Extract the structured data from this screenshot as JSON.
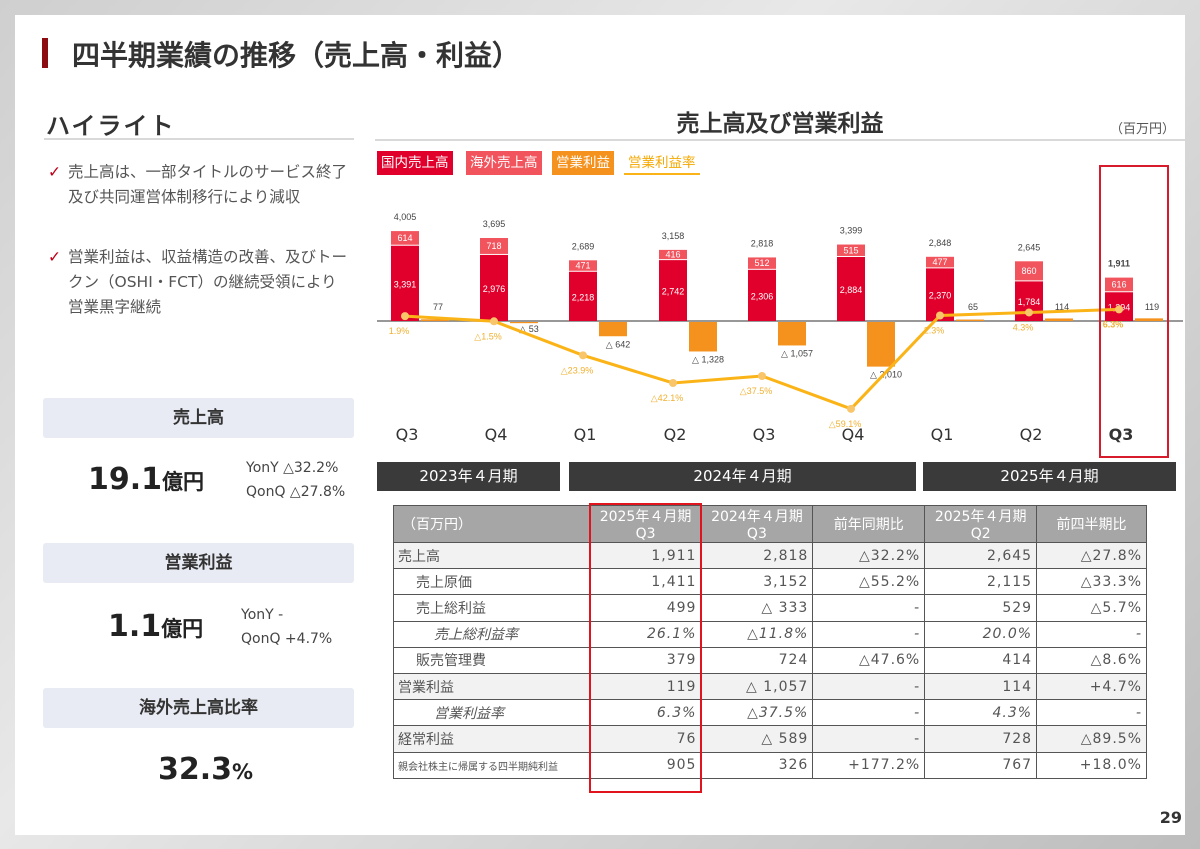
{
  "title": "四半期業績の推移（売上高・利益）",
  "highlight": {
    "title": "ハイライト",
    "bullets": [
      "売上高は、一部タイトルのサービス終了及び共同運営体制移行により減収",
      "営業利益は、収益構造の改善、及びトークン（OSHI・FCT）の継続受領により営業黒字継続"
    ],
    "check_icon": "✓"
  },
  "kpis": [
    {
      "label": "売上高",
      "value": "19.1",
      "unit": "億円",
      "yoy": "YonY △32.2%",
      "qoq": "QonQ △27.8%"
    },
    {
      "label": "営業利益",
      "value": "1.1",
      "unit": "億円",
      "yoy": "YonY -",
      "qoq": "QonQ  +4.7%"
    },
    {
      "label": "海外売上高比率",
      "value": "32.3",
      "unit": "%"
    }
  ],
  "chart_data": {
    "type": "bar",
    "title": "売上高及び営業利益",
    "unit": "（百万円）",
    "categories": [
      "Q3",
      "Q4",
      "Q1",
      "Q2",
      "Q3",
      "Q4",
      "Q1",
      "Q2",
      "Q3"
    ],
    "periods": [
      "2023年４月期",
      "2024年４月期",
      "2025年４月期"
    ],
    "series": [
      {
        "name": "国内売上高",
        "color": "#e0002b",
        "values": [
          3391,
          2976,
          2218,
          2742,
          2306,
          2884,
          2370,
          1784,
          1294
        ],
        "labels": [
          "3,391",
          "2,976",
          "2,218",
          "2,742",
          "2,306",
          "2,884",
          "2,370",
          "1,784",
          "1,294"
        ]
      },
      {
        "name": "海外売上高",
        "color": "#f2545e",
        "values": [
          614,
          718,
          471,
          416,
          512,
          515,
          477,
          860,
          616
        ],
        "labels": [
          "614",
          "718",
          "471",
          "416",
          "512",
          "515",
          "477",
          "860",
          "616"
        ]
      },
      {
        "name": "営業利益",
        "color": "#f5921e",
        "values": [
          77,
          -53,
          -642,
          -1328,
          -1057,
          -2010,
          65,
          114,
          119
        ],
        "labels": [
          "77",
          "△ 53",
          "△ 642",
          "△ 1,328",
          "△ 1,057",
          "△ 2,010",
          "65",
          "114",
          "119"
        ]
      },
      {
        "name": "営業利益率",
        "color": "#fbb417",
        "values": [
          1.9,
          -1.5,
          -23.9,
          -42.1,
          -37.5,
          -59.1,
          2.3,
          4.3,
          6.3
        ],
        "labels": [
          "1.9%",
          "△1.5%",
          "△23.9%",
          "△42.1%",
          "△37.5%",
          "△59.1%",
          "2.3%",
          "4.3%",
          "6.3%"
        ]
      }
    ],
    "totals": [
      "4,005",
      "3,695",
      "2,689",
      "3,158",
      "2,818",
      "3,399",
      "2,848",
      "2,645",
      "1,911"
    ]
  },
  "table": {
    "headers": [
      [
        "（百万円）"
      ],
      [
        "2025年４月期",
        "Q3"
      ],
      [
        "2024年４月期",
        "Q3"
      ],
      [
        "前年同期比"
      ],
      [
        "2025年４月期",
        "Q2"
      ],
      [
        "前四半期比"
      ]
    ],
    "rows": [
      [
        "売上高",
        "1,911",
        "2,818",
        "△32.2%",
        "2,645",
        "△27.8%"
      ],
      [
        "売上原価",
        "1,411",
        "3,152",
        "△55.2%",
        "2,115",
        "△33.3%"
      ],
      [
        "売上総利益",
        "499",
        "△ 333",
        "-",
        "529",
        "△5.7%"
      ],
      [
        "売上総利益率",
        "26.1%",
        "△11.8%",
        "-",
        "20.0%",
        "-"
      ],
      [
        "販売管理費",
        "379",
        "724",
        "△47.6%",
        "414",
        "△8.6%"
      ],
      [
        "営業利益",
        "119",
        "△ 1,057",
        "-",
        "114",
        "+4.7%"
      ],
      [
        "営業利益率",
        "6.3%",
        "△37.5%",
        "-",
        "4.3%",
        "-"
      ],
      [
        "経常利益",
        "76",
        "△ 589",
        "-",
        "728",
        "△89.5%"
      ],
      [
        "親会社株主に帰属する四半期純利益",
        "905",
        "326",
        "+177.2%",
        "767",
        "+18.0%"
      ]
    ]
  },
  "page_number": "29"
}
